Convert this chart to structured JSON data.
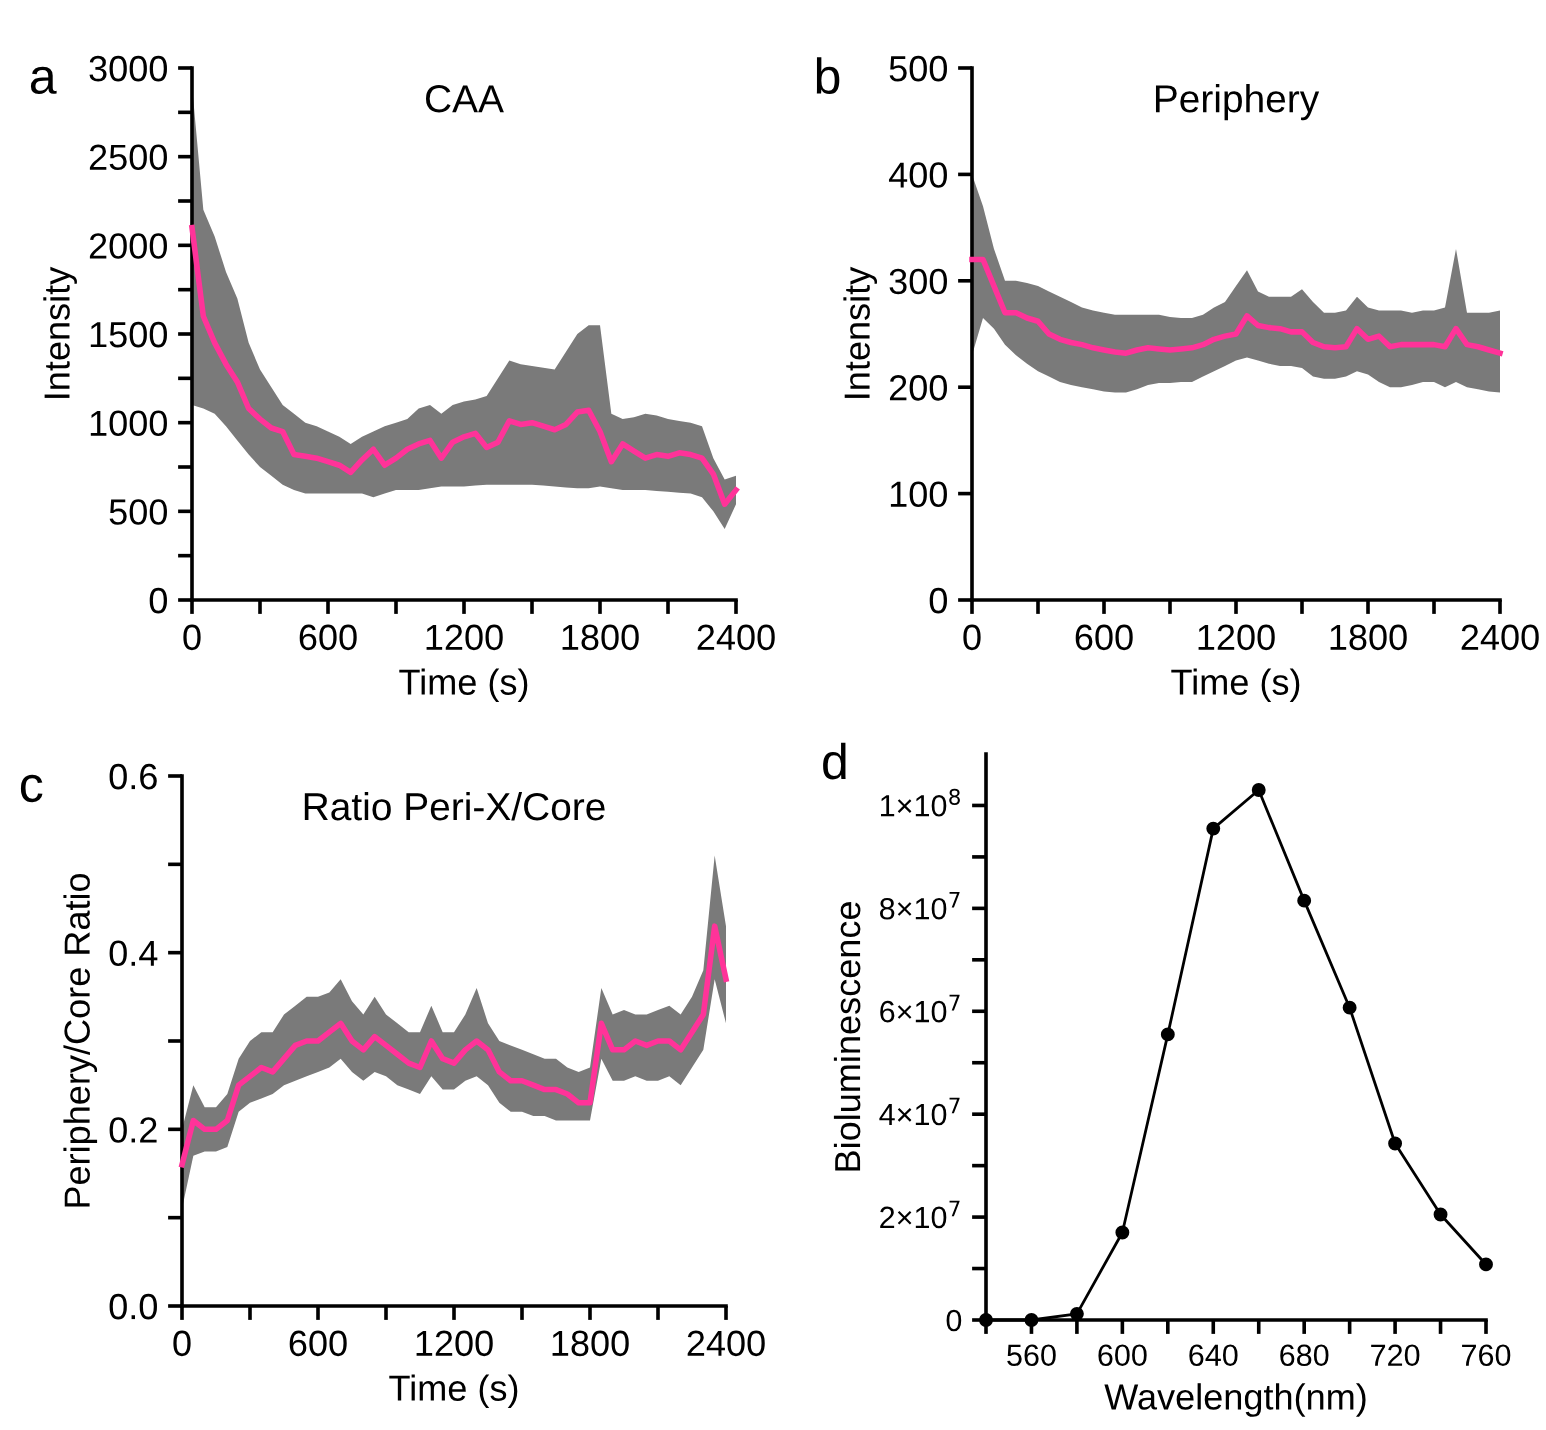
{
  "chart_data": [
    {
      "type": "line",
      "title": "CAA",
      "xlabel": "Time (s)",
      "ylabel": "Intensity",
      "annotations": [
        "a"
      ],
      "xlim": [
        0,
        2400
      ],
      "xticks": [
        0,
        {
          "value": 300,
          "label": null
        },
        600,
        {
          "value": 900,
          "label": null
        },
        1200,
        {
          "value": 1500,
          "label": null
        },
        1800,
        {
          "value": 2100,
          "label": null
        },
        2400
      ],
      "ylim": [
        0,
        3000
      ],
      "yticks": [
        0,
        {
          "value": 250,
          "label": null
        },
        500,
        {
          "value": 750,
          "label": null
        },
        1000,
        {
          "value": 1250,
          "label": null
        },
        1500,
        {
          "value": 1750,
          "label": null
        },
        2000,
        {
          "value": 2250,
          "label": null
        },
        2500,
        {
          "value": 2750,
          "label": null
        },
        3000
      ],
      "grid": false,
      "legend": false,
      "series": [
        {
          "color": "#ff3399",
          "x": [
            0,
            50,
            100,
            150,
            200,
            250,
            300,
            350,
            400,
            450,
            500,
            550,
            600,
            650,
            700,
            750,
            800,
            850,
            900,
            950,
            1000,
            1050,
            1100,
            1150,
            1200,
            1250,
            1300,
            1350,
            1400,
            1450,
            1500,
            1550,
            1600,
            1650,
            1700,
            1750,
            1800,
            1850,
            1900,
            1950,
            2000,
            2050,
            2100,
            2150,
            2200,
            2250,
            2300,
            2350,
            2400
          ],
          "values": [
            2100,
            1600,
            1450,
            1330,
            1230,
            1080,
            1020,
            970,
            950,
            820,
            810,
            800,
            780,
            760,
            720,
            790,
            850,
            760,
            800,
            850,
            880,
            900,
            800,
            890,
            920,
            940,
            860,
            890,
            1010,
            990,
            1000,
            980,
            960,
            990,
            1060,
            1070,
            950,
            780,
            880,
            840,
            800,
            820,
            810,
            830,
            820,
            800,
            710,
            540,
            620
          ],
          "upper": [
            2900,
            2200,
            2050,
            1850,
            1700,
            1450,
            1300,
            1200,
            1100,
            1050,
            1000,
            980,
            950,
            920,
            880,
            920,
            950,
            980,
            1000,
            1020,
            1080,
            1100,
            1050,
            1100,
            1120,
            1130,
            1150,
            1250,
            1350,
            1330,
            1320,
            1310,
            1300,
            1400,
            1500,
            1550,
            1550,
            1050,
            1020,
            1030,
            1050,
            1040,
            1020,
            1010,
            1000,
            980,
            800,
            680,
            700
          ],
          "lower": [
            1100,
            1080,
            1050,
            980,
            900,
            820,
            750,
            700,
            650,
            620,
            600,
            600,
            600,
            600,
            600,
            600,
            580,
            600,
            620,
            620,
            620,
            630,
            640,
            640,
            640,
            645,
            650,
            650,
            650,
            650,
            650,
            645,
            640,
            635,
            630,
            630,
            640,
            630,
            620,
            620,
            620,
            615,
            610,
            605,
            600,
            580,
            500,
            400,
            540
          ]
        }
      ]
    },
    {
      "type": "line",
      "title": "Periphery",
      "xlabel": "Time (s)",
      "ylabel": "Intensity",
      "annotations": [
        "b"
      ],
      "xlim": [
        0,
        2400
      ],
      "xticks": [
        0,
        {
          "value": 300,
          "label": null
        },
        600,
        {
          "value": 900,
          "label": null
        },
        1200,
        {
          "value": 1500,
          "label": null
        },
        1800,
        {
          "value": 2100,
          "label": null
        },
        2400
      ],
      "ylim": [
        0,
        500
      ],
      "yticks": [
        0,
        100,
        200,
        300,
        400,
        500
      ],
      "grid": false,
      "legend": false,
      "series": [
        {
          "color": "#ff3399",
          "x": [
            0,
            50,
            100,
            150,
            200,
            250,
            300,
            350,
            400,
            450,
            500,
            550,
            600,
            650,
            700,
            750,
            800,
            850,
            900,
            950,
            1000,
            1050,
            1100,
            1150,
            1200,
            1250,
            1300,
            1350,
            1400,
            1450,
            1500,
            1550,
            1600,
            1650,
            1700,
            1750,
            1800,
            1850,
            1900,
            1950,
            2000,
            2050,
            2100,
            2150,
            2200,
            2250,
            2300,
            2350,
            2400
          ],
          "values": [
            320,
            320,
            295,
            270,
            270,
            265,
            262,
            250,
            245,
            242,
            240,
            237,
            235,
            233,
            232,
            235,
            237,
            236,
            235,
            236,
            237,
            240,
            245,
            248,
            250,
            267,
            258,
            256,
            255,
            252,
            252,
            242,
            238,
            237,
            238,
            255,
            245,
            248,
            238,
            240,
            240,
            240,
            240,
            238,
            255,
            240,
            238,
            235,
            232
          ],
          "upper": [
            400,
            370,
            330,
            300,
            300,
            298,
            295,
            290,
            285,
            280,
            275,
            272,
            270,
            268,
            268,
            268,
            268,
            268,
            266,
            265,
            265,
            268,
            275,
            280,
            295,
            310,
            290,
            285,
            285,
            285,
            292,
            280,
            270,
            270,
            272,
            285,
            275,
            272,
            272,
            272,
            270,
            272,
            272,
            275,
            330,
            270,
            270,
            270,
            272
          ],
          "lower": [
            230,
            265,
            255,
            240,
            230,
            222,
            215,
            210,
            205,
            202,
            200,
            198,
            196,
            195,
            195,
            198,
            202,
            204,
            204,
            205,
            205,
            210,
            215,
            220,
            225,
            228,
            225,
            222,
            220,
            220,
            218,
            210,
            208,
            208,
            210,
            215,
            212,
            205,
            200,
            200,
            202,
            205,
            205,
            200,
            205,
            200,
            198,
            196,
            195
          ]
        }
      ]
    },
    {
      "type": "line",
      "title": "Ratio Peri-X/Core",
      "xlabel": "Time (s)",
      "ylabel": "Periphery/Core Ratio",
      "annotations": [
        "c"
      ],
      "xlim": [
        0,
        2400
      ],
      "xticks": [
        0,
        {
          "value": 300,
          "label": null
        },
        600,
        {
          "value": 900,
          "label": null
        },
        1200,
        {
          "value": 1500,
          "label": null
        },
        1800,
        {
          "value": 2100,
          "label": null
        },
        2400
      ],
      "ylim": [
        0,
        0.6
      ],
      "yticks": [
        {
          "value": 0,
          "label": "0.0"
        },
        {
          "value": 0.1,
          "label": null
        },
        0.2,
        {
          "value": 0.3,
          "label": null
        },
        0.4,
        {
          "value": 0.5,
          "label": null
        },
        0.6
      ],
      "grid": false,
      "legend": false,
      "series": [
        {
          "color": "#ff3399",
          "x": [
            0,
            50,
            100,
            150,
            200,
            250,
            300,
            350,
            400,
            450,
            500,
            550,
            600,
            650,
            700,
            750,
            800,
            850,
            900,
            950,
            1000,
            1050,
            1100,
            1150,
            1200,
            1250,
            1300,
            1350,
            1400,
            1450,
            1500,
            1550,
            1600,
            1650,
            1700,
            1750,
            1800,
            1850,
            1900,
            1950,
            2000,
            2050,
            2100,
            2150,
            2200,
            2250,
            2300,
            2350,
            2400
          ],
          "values": [
            0.16,
            0.21,
            0.2,
            0.2,
            0.21,
            0.25,
            0.26,
            0.27,
            0.265,
            0.28,
            0.295,
            0.3,
            0.3,
            0.31,
            0.32,
            0.3,
            0.29,
            0.305,
            0.295,
            0.285,
            0.275,
            0.27,
            0.3,
            0.28,
            0.275,
            0.29,
            0.3,
            0.29,
            0.265,
            0.255,
            0.255,
            0.25,
            0.245,
            0.245,
            0.24,
            0.23,
            0.23,
            0.32,
            0.29,
            0.29,
            0.3,
            0.295,
            0.3,
            0.3,
            0.29,
            0.31,
            0.33,
            0.43,
            0.37
          ],
          "upper": [
            0.2,
            0.25,
            0.225,
            0.225,
            0.24,
            0.28,
            0.3,
            0.31,
            0.31,
            0.33,
            0.34,
            0.35,
            0.35,
            0.355,
            0.37,
            0.345,
            0.33,
            0.35,
            0.33,
            0.32,
            0.31,
            0.31,
            0.34,
            0.31,
            0.31,
            0.33,
            0.36,
            0.32,
            0.3,
            0.295,
            0.29,
            0.285,
            0.28,
            0.28,
            0.27,
            0.265,
            0.27,
            0.36,
            0.33,
            0.335,
            0.33,
            0.33,
            0.335,
            0.34,
            0.33,
            0.35,
            0.38,
            0.51,
            0.43
          ],
          "lower": [
            0.11,
            0.17,
            0.175,
            0.175,
            0.18,
            0.22,
            0.23,
            0.235,
            0.24,
            0.25,
            0.255,
            0.26,
            0.265,
            0.27,
            0.28,
            0.265,
            0.255,
            0.265,
            0.26,
            0.25,
            0.245,
            0.24,
            0.26,
            0.245,
            0.245,
            0.255,
            0.26,
            0.25,
            0.23,
            0.22,
            0.22,
            0.215,
            0.215,
            0.21,
            0.21,
            0.21,
            0.21,
            0.28,
            0.255,
            0.255,
            0.26,
            0.255,
            0.255,
            0.26,
            0.25,
            0.27,
            0.29,
            0.37,
            0.32
          ]
        }
      ]
    },
    {
      "type": "line",
      "xlabel": "Wavelength(nm)",
      "ylabel": "Bioluminescence",
      "annotations": [
        "d"
      ],
      "xlim": [
        540,
        760
      ],
      "xticks": [
        {
          "value": 540,
          "label": null
        },
        560,
        {
          "value": 580,
          "label": null
        },
        600,
        {
          "value": 620,
          "label": null
        },
        640,
        {
          "value": 660,
          "label": null
        },
        680,
        {
          "value": 700,
          "label": null
        },
        720,
        {
          "value": 740,
          "label": null
        },
        760
      ],
      "ylim": [
        0,
        110000000
      ],
      "yticks": [
        0,
        {
          "value": 10000000,
          "label": null
        },
        {
          "value": 20000000,
          "label": "2×10$^{7}$"
        },
        {
          "value": 30000000,
          "label": null
        },
        {
          "value": 40000000,
          "label": "4×10$^{7}$"
        },
        {
          "value": 50000000,
          "label": null
        },
        {
          "value": 60000000,
          "label": "6×10$^{7}$"
        },
        {
          "value": 70000000,
          "label": null
        },
        {
          "value": 80000000,
          "label": "8×10$^{7}$"
        },
        {
          "value": 90000000,
          "label": null
        },
        {
          "value": 100000000,
          "label": "1×10$^{8}$"
        }
      ],
      "grid": false,
      "legend": false,
      "marker": "circle",
      "series": [
        {
          "color": "#000000",
          "x": [
            540,
            560,
            580,
            600,
            620,
            640,
            660,
            680,
            700,
            720,
            740,
            760
          ],
          "values": [
            0,
            0,
            1200000,
            17000000,
            55500000,
            95500000,
            103000000,
            81500000,
            60700000,
            34300000,
            20500000,
            10800000
          ]
        }
      ]
    }
  ]
}
